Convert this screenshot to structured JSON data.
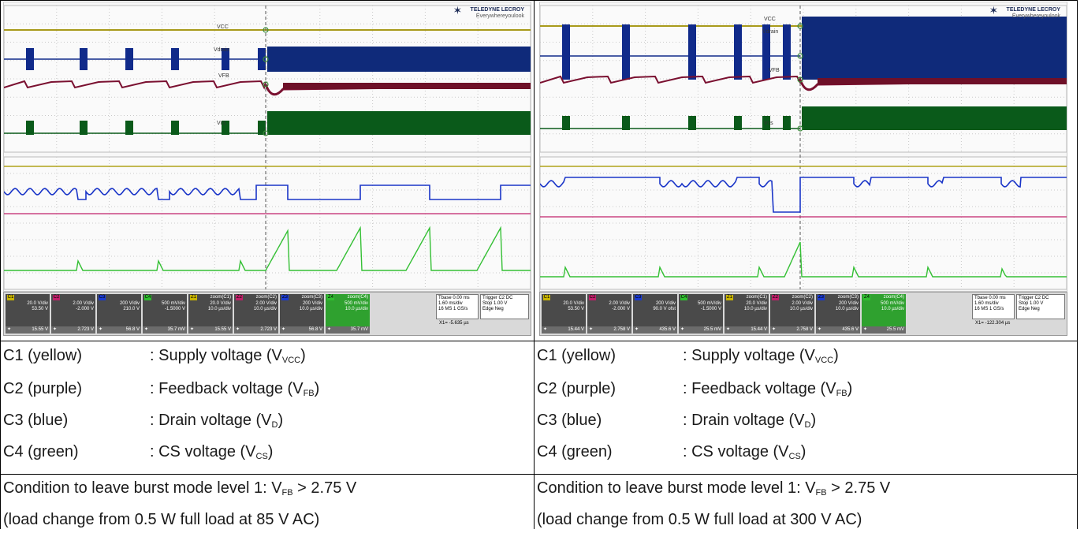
{
  "panels": [
    {
      "id": "left",
      "trace_labels": {
        "vcc": "VCC",
        "vdrain": "Vdrain",
        "vfb": "VFB",
        "vcs": "Vcs"
      },
      "brand": {
        "name": "TELEDYNE LECROY",
        "tagline": "Everywhereyoulook"
      },
      "channels": [
        {
          "tag": "C1",
          "scale": "20.0 V/div",
          "offset": "53.50 V",
          "meas": "15.55 V",
          "color": "#c8b400"
        },
        {
          "tag": "C2",
          "scale": "2.00 V/div",
          "offset": "-2.000 V",
          "meas": "2.723 V",
          "color": "#c0206a"
        },
        {
          "tag": "C3",
          "scale": "200 V/div",
          "offset": "210.0 V",
          "meas": "56.8 V",
          "color": "#1a3ad0"
        },
        {
          "tag": "C4",
          "scale": "500 mV/div",
          "offset": "-1.5000 V",
          "meas": "35.7 mV",
          "color": "#2fbf2f"
        },
        {
          "tag": "Z1",
          "title": "zoom(C1)",
          "scale": "20.0 V/div",
          "offset": "10.0 µs/div",
          "meas": "15.55 V",
          "color": "#c8b400"
        },
        {
          "tag": "Z2",
          "title": "zoom(C2)",
          "scale": "2.00 V/div",
          "offset": "10.0 µs/div",
          "meas": "2.723 V",
          "color": "#c0206a"
        },
        {
          "tag": "Z3",
          "title": "zoom(C3)",
          "scale": "200 V/div",
          "offset": "10.0 µs/div",
          "meas": "56.8 V",
          "color": "#1a3ad0"
        },
        {
          "tag": "Z4",
          "title": "zoom(C4)",
          "scale": "500 mV/div",
          "offset": "10.0 µs/div",
          "meas": "35.7 mV",
          "color": "#2fbf2f"
        }
      ],
      "timebase": {
        "label": "Tbase",
        "delay": "0.00 ms",
        "tdiv": "1.60 ms/div",
        "samples": "16 MS",
        "rate": "1 GS/s"
      },
      "trigger": {
        "label": "Trigger",
        "ch": "C2 DC",
        "mode": "Stop",
        "level": "1.00 V",
        "type": "Edge",
        "slope": "Neg"
      },
      "cursor": "X1= -5.635 µs"
    },
    {
      "id": "right",
      "trace_labels": {
        "vcc": "VCC",
        "vdrain": "Vdrain",
        "vfb": "VFB",
        "vcs": "Vcs"
      },
      "brand": {
        "name": "TELEDYNE LECROY",
        "tagline": "Everywhereyoulook"
      },
      "channels": [
        {
          "tag": "C1",
          "scale": "20.0 V/div",
          "offset": "53.50 V",
          "meas": "15.44 V",
          "color": "#c8b400"
        },
        {
          "tag": "C2",
          "scale": "2.00 V/div",
          "offset": "-2.000 V",
          "meas": "2.758 V",
          "color": "#c0206a"
        },
        {
          "tag": "C3",
          "scale": "200 V/div",
          "offset": "90.0 V ofst",
          "meas": "435.6 V",
          "color": "#1a3ad0"
        },
        {
          "tag": "C4",
          "scale": "500 mV/div",
          "offset": "-1.5000 V",
          "meas": "25.5 mV",
          "color": "#2fbf2f"
        },
        {
          "tag": "Z1",
          "title": "zoom(C1)",
          "scale": "20.0 V/div",
          "offset": "10.0 µs/div",
          "meas": "15.44 V",
          "color": "#c8b400"
        },
        {
          "tag": "Z2",
          "title": "zoom(C2)",
          "scale": "2.00 V/div",
          "offset": "10.0 µs/div",
          "meas": "2.758 V",
          "color": "#c0206a"
        },
        {
          "tag": "Z3",
          "title": "zoom(C3)",
          "scale": "200 V/div",
          "offset": "10.0 µs/div",
          "meas": "435.6 V",
          "color": "#1a3ad0"
        },
        {
          "tag": "Z4",
          "title": "zoom(C4)",
          "scale": "500 mV/div",
          "offset": "10.0 µs/div",
          "meas": "25.5 mV",
          "color": "#2fbf2f"
        }
      ],
      "timebase": {
        "label": "Tbase",
        "delay": "0.00 ms",
        "tdiv": "1.60 ms/div",
        "samples": "16 MS",
        "rate": "1 GS/s"
      },
      "trigger": {
        "label": "Trigger",
        "ch": "C2 DC",
        "mode": "Stop",
        "level": "1.00 V",
        "type": "Edge",
        "slope": "Neg"
      },
      "cursor": "X1= -122.304 µs"
    }
  ],
  "legend": {
    "rows": [
      {
        "name": "C1 (yellow)",
        "desc": ": Supply voltage (V",
        "sub": "VCC",
        "end": ")"
      },
      {
        "name": "C2 (purple)",
        "desc": ": Feedback voltage (V",
        "sub": "FB",
        "end": ")"
      },
      {
        "name": "C3 (blue)",
        "desc": ": Drain voltage (V",
        "sub": "D",
        "end": ")"
      },
      {
        "name": "C4 (green)",
        "desc": ": CS voltage (V",
        "sub": "CS",
        "end": ")"
      }
    ]
  },
  "conditions": [
    {
      "line1_pre": "Condition to leave burst mode level 1: V",
      "line1_sub": "FB",
      "line1_post": " > 2.75 V",
      "line2": "(load change from 0.5 W full load at 85 V AC)"
    },
    {
      "line1_pre": "Condition to leave burst mode level 1: V",
      "line1_sub": "FB",
      "line1_post": " > 2.75 V",
      "line2": "(load change from 0.5 W full load at 300 V AC)"
    }
  ]
}
